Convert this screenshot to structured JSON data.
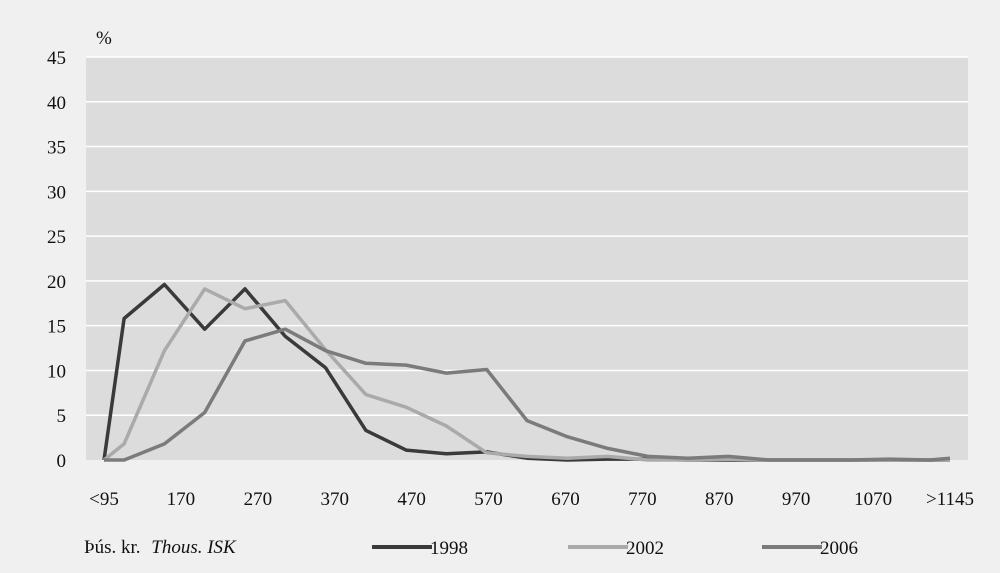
{
  "chart_data": {
    "type": "line",
    "title": "",
    "ylabel": "%",
    "xlabel_prefix": "Þús. kr.",
    "xlabel_italic": "Thous. ISK",
    "ylim": [
      0,
      45
    ],
    "yticks": [
      0,
      5,
      10,
      15,
      20,
      25,
      30,
      35,
      40,
      45
    ],
    "x_tick_labels": [
      "<95",
      "170",
      "270",
      "370",
      "470",
      "570",
      "670",
      "770",
      "870",
      "970",
      "1070",
      ">1145"
    ],
    "grid": "horizontal",
    "legend_position": "bottom",
    "colors": {
      "background": "#f0f0f0",
      "plot_area": "#dcdcdc",
      "gridline": "#ffffff"
    },
    "x": [
      95,
      120,
      170,
      220,
      270,
      320,
      370,
      420,
      470,
      520,
      570,
      620,
      670,
      720,
      770,
      820,
      870,
      920,
      970,
      1020,
      1070,
      1120,
      1145
    ],
    "series": [
      {
        "name": "1998",
        "color": "#3a3a3a",
        "values": [
          0,
          15.8,
          19.6,
          14.6,
          19.1,
          13.8,
          10.3,
          3.3,
          1.1,
          0.7,
          0.9,
          0.2,
          0.0,
          0.1,
          0.1,
          0.0,
          0.0,
          0.0,
          0.0,
          0.0,
          0.0,
          0.0,
          0.0
        ]
      },
      {
        "name": "2002",
        "color": "#aaaaaa",
        "values": [
          0,
          1.8,
          12.2,
          19.1,
          16.9,
          17.8,
          12.3,
          7.3,
          5.9,
          3.8,
          0.8,
          0.4,
          0.2,
          0.4,
          0.0,
          0.0,
          0.1,
          0.0,
          0.0,
          0.0,
          0.0,
          0.0,
          0.0
        ]
      },
      {
        "name": "2006",
        "color": "#7b7b7b",
        "values": [
          0,
          0,
          1.8,
          5.3,
          13.3,
          14.6,
          12.2,
          10.8,
          10.6,
          9.7,
          10.1,
          4.4,
          2.6,
          1.3,
          0.4,
          0.2,
          0.4,
          0.0,
          0.0,
          0.0,
          0.1,
          0.0,
          0.2
        ]
      }
    ]
  }
}
